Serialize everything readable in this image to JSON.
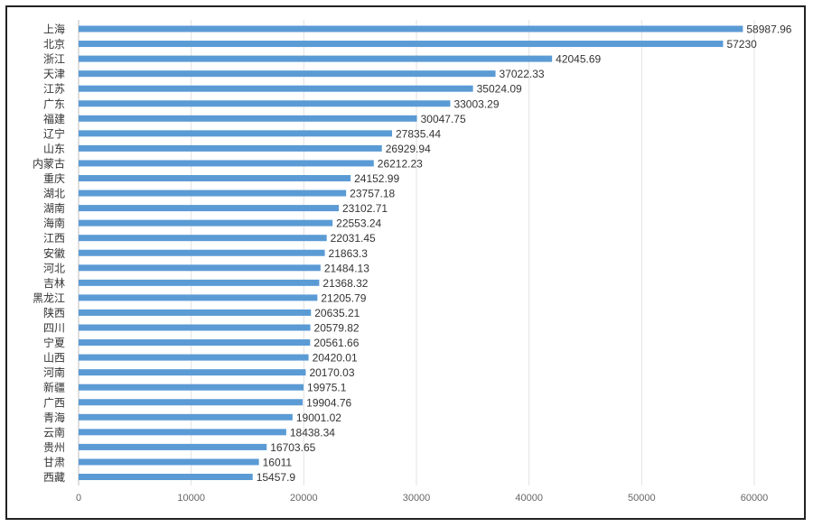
{
  "chart_data": {
    "type": "bar",
    "orientation": "horizontal",
    "title": "",
    "xlabel": "",
    "ylabel": "",
    "xlim": [
      0,
      60000
    ],
    "ticks": [
      "0",
      "10000",
      "20000",
      "30000",
      "40000",
      "50000",
      "60000"
    ],
    "tick_values": [
      0,
      10000,
      20000,
      30000,
      40000,
      50000,
      60000
    ],
    "grid": true,
    "bar_color": "#5b9bd5",
    "categories": [
      "上海",
      "北京",
      "浙江",
      "天津",
      "江苏",
      "广东",
      "福建",
      "辽宁",
      "山东",
      "内蒙古",
      "重庆",
      "湖北",
      "湖南",
      "海南",
      "江西",
      "安徽",
      "河北",
      "吉林",
      "黑龙江",
      "陕西",
      "四川",
      "宁夏",
      "山西",
      "河南",
      "新疆",
      "广西",
      "青海",
      "云南",
      "贵州",
      "甘肃",
      "西藏"
    ],
    "values": [
      58987.96,
      57230,
      42045.69,
      37022.33,
      35024.09,
      33003.29,
      30047.75,
      27835.44,
      26929.94,
      26212.23,
      24152.99,
      23757.18,
      23102.71,
      22553.24,
      22031.45,
      21863.3,
      21484.13,
      21368.32,
      21205.79,
      20635.21,
      20579.82,
      20561.66,
      20420.01,
      20170.03,
      19975.1,
      19904.76,
      19001.02,
      18438.34,
      16703.65,
      16011,
      15457.9
    ],
    "labels": [
      "58987.96",
      "57230",
      "42045.69",
      "37022.33",
      "35024.09",
      "33003.29",
      "30047.75",
      "27835.44",
      "26929.94",
      "26212.23",
      "24152.99",
      "23757.18",
      "23102.71",
      "22553.24",
      "22031.45",
      "21863.3",
      "21484.13",
      "21368.32",
      "21205.79",
      "20635.21",
      "20579.82",
      "20561.66",
      "20420.01",
      "20170.03",
      "19975.1",
      "19904.76",
      "19001.02",
      "18438.34",
      "16703.65",
      "16011",
      "15457.9"
    ]
  }
}
